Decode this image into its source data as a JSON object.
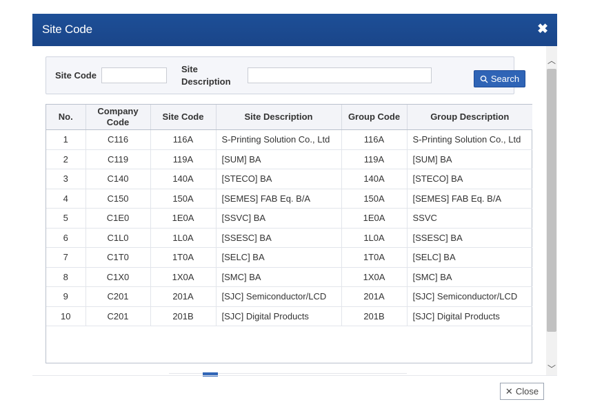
{
  "dialog": {
    "title": "Site Code",
    "close_icon": "✖"
  },
  "search": {
    "site_code_label": "Site Code",
    "site_code_value": "",
    "site_desc_label_1": "Site",
    "site_desc_label_2": "Description",
    "site_desc_value": "",
    "search_label": "Search"
  },
  "table": {
    "headers": [
      "No.",
      "Company Code",
      "Site Code",
      "Site Description",
      "Group Code",
      "Group Description"
    ],
    "header_company_1": "Company",
    "header_company_2": "Code",
    "rows": [
      [
        "1",
        "C116",
        "116A",
        "S-Printing Solution Co., Ltd",
        "116A",
        "S-Printing Solution Co., Ltd"
      ],
      [
        "2",
        "C119",
        "119A",
        "[SUM] BA",
        "119A",
        "[SUM] BA"
      ],
      [
        "3",
        "C140",
        "140A",
        "[STECO] BA",
        "140A",
        "[STECO] BA"
      ],
      [
        "4",
        "C150",
        "150A",
        "[SEMES] FAB Eq. B/A",
        "150A",
        "[SEMES] FAB Eq. B/A"
      ],
      [
        "5",
        "C1E0",
        "1E0A",
        "[SSVC] BA",
        "1E0A",
        "SSVC"
      ],
      [
        "6",
        "C1L0",
        "1L0A",
        "[SSESC] BA",
        "1L0A",
        "[SSESC] BA"
      ],
      [
        "7",
        "C1T0",
        "1T0A",
        "[SELC] BA",
        "1T0A",
        "[SELC] BA"
      ],
      [
        "8",
        "C1X0",
        "1X0A",
        "[SMC] BA",
        "1X0A",
        "[SMC] BA"
      ],
      [
        "9",
        "C201",
        "201A",
        "[SJC] Semiconductor/LCD",
        "201A",
        "[SJC] Semiconductor/LCD"
      ],
      [
        "10",
        "C201",
        "201B",
        "[SJC] Digital Products",
        "201B",
        "[SJC] Digital Products"
      ]
    ]
  },
  "footer": {
    "close_label": "Close",
    "close_icon": "✕"
  },
  "colors": {
    "titlebar": "#1a4589",
    "accent": "#2f64b6"
  }
}
